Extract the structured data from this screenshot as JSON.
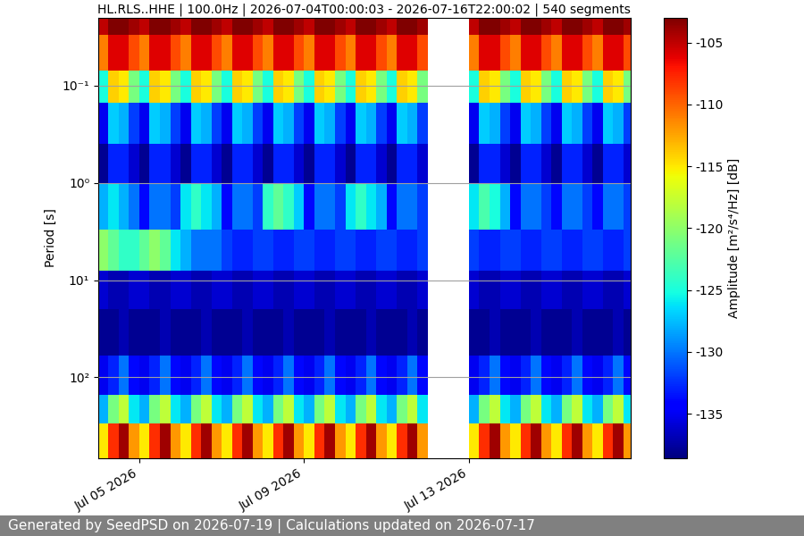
{
  "chart_data": {
    "type": "spectrogram",
    "title": "HL.RLS..HHE | 100.0Hz | 2026-07-04T00:00:03 - 2026-07-16T22:00:02 | 540 segments",
    "y_label": "Period [s]",
    "footer": "Generated by SeedPSD on 2026-07-19 | Calculations updated on 2026-07-17",
    "log": "y",
    "grid": true,
    "xlim": [
      "2026-07-04T00:00:03",
      "2026-07-16T22:00:02"
    ],
    "xticks": [
      {
        "value": "2026-07-05T00:00:00",
        "label": "Jul 05 2026"
      },
      {
        "value": "2026-07-09T00:00:00",
        "label": "Jul 09 2026"
      },
      {
        "value": "2026-07-13T00:00:00",
        "label": "Jul 13 2026"
      }
    ],
    "ylim": [
      680,
      0.02
    ],
    "yticks": [
      {
        "value": 0.1,
        "label": "10⁻¹"
      },
      {
        "value": 1,
        "label": "10⁰"
      },
      {
        "value": 10,
        "label": "10¹"
      },
      {
        "value": 100,
        "label": "10²"
      }
    ],
    "x_edges": [
      "2026-07-04T00:00:03",
      "2026-07-04T06:00:00",
      "2026-07-04T12:00:00",
      "2026-07-04T18:00:00",
      "2026-07-05T00:00:00",
      "2026-07-05T06:00:00",
      "2026-07-05T12:00:00",
      "2026-07-05T18:00:00",
      "2026-07-06T00:00:00",
      "2026-07-06T06:00:00",
      "2026-07-06T12:00:00",
      "2026-07-06T18:00:00",
      "2026-07-07T00:00:00",
      "2026-07-07T06:00:00",
      "2026-07-07T12:00:00",
      "2026-07-07T18:00:00",
      "2026-07-08T00:00:00",
      "2026-07-08T06:00:00",
      "2026-07-08T12:00:00",
      "2026-07-08T18:00:00",
      "2026-07-09T00:00:00",
      "2026-07-09T06:00:00",
      "2026-07-09T12:00:00",
      "2026-07-09T18:00:00",
      "2026-07-10T00:00:00",
      "2026-07-10T06:00:00",
      "2026-07-10T12:00:00",
      "2026-07-10T18:00:00",
      "2026-07-11T00:00:00",
      "2026-07-11T06:00:00",
      "2026-07-11T12:00:00",
      "2026-07-11T18:00:00",
      "2026-07-12T00:00:00",
      "2026-07-12T06:00:00",
      "2026-07-12T12:00:00",
      "2026-07-12T18:00:00",
      "2026-07-13T00:00:00",
      "2026-07-13T06:00:00",
      "2026-07-13T12:00:00",
      "2026-07-13T18:00:00",
      "2026-07-14T00:00:00",
      "2026-07-14T06:00:00",
      "2026-07-14T12:00:00",
      "2026-07-14T18:00:00",
      "2026-07-15T00:00:00",
      "2026-07-15T06:00:00",
      "2026-07-15T12:00:00",
      "2026-07-15T18:00:00",
      "2026-07-16T00:00:00",
      "2026-07-16T06:00:00",
      "2026-07-16T12:00:00",
      "2026-07-16T18:00:00",
      "2026-07-16T22:00:02"
    ],
    "period_edges": [
      0.02,
      0.03,
      0.07,
      0.15,
      0.4,
      1,
      3,
      8,
      20,
      60,
      150,
      300,
      680
    ],
    "cells": [
      [
        -105,
        -103,
        -103,
        -104,
        -105,
        -103,
        -103,
        -104,
        -105,
        -103,
        -103,
        -104,
        -105,
        -103,
        -103,
        -104,
        -105,
        -103,
        -103,
        -104,
        -105,
        -103,
        -103,
        -104,
        -105,
        -103,
        -103,
        -104,
        -105,
        -103,
        -103,
        -104,
        null,
        null,
        null,
        null,
        -105,
        -103,
        -103,
        -104,
        -105,
        -103,
        -103,
        -104,
        -105,
        -103,
        -103,
        -104,
        -105,
        -103,
        -103,
        -104
      ],
      [
        -111,
        -106,
        -106,
        -109,
        -111,
        -106,
        -106,
        -109,
        -111,
        -106,
        -106,
        -109,
        -111,
        -106,
        -106,
        -109,
        -111,
        -106,
        -106,
        -109,
        -111,
        -106,
        -106,
        -109,
        -111,
        -106,
        -106,
        -109,
        -111,
        -106,
        -106,
        -109,
        null,
        null,
        null,
        null,
        -111,
        -106,
        -106,
        -109,
        -111,
        -106,
        -106,
        -109,
        -111,
        -106,
        -106,
        -109,
        -111,
        -106,
        -106,
        -109
      ],
      [
        -125,
        -114,
        -115,
        -121,
        -125,
        -114,
        -115,
        -121,
        -125,
        -114,
        -115,
        -121,
        -125,
        -114,
        -115,
        -121,
        -125,
        -114,
        -115,
        -121,
        -125,
        -114,
        -115,
        -121,
        -125,
        -114,
        -115,
        -121,
        -125,
        -114,
        -115,
        -121,
        null,
        null,
        null,
        null,
        -125,
        -114,
        -115,
        -121,
        -125,
        -114,
        -115,
        -121,
        -125,
        -114,
        -115,
        -121,
        -125,
        -114,
        -115,
        -121
      ],
      [
        -135,
        -127,
        -128,
        -132,
        -135,
        -127,
        -128,
        -132,
        -135,
        -127,
        -128,
        -132,
        -135,
        -127,
        -128,
        -132,
        -135,
        -127,
        -128,
        -132,
        -135,
        -127,
        -128,
        -132,
        -135,
        -127,
        -128,
        -132,
        -135,
        -127,
        -128,
        -132,
        null,
        null,
        null,
        null,
        -135,
        -127,
        -128,
        -132,
        -135,
        -127,
        -128,
        -132,
        -135,
        -127,
        -128,
        -132,
        -135,
        -127,
        -128,
        -132
      ],
      [
        -138,
        -133,
        -133,
        -136,
        -138,
        -133,
        -133,
        -136,
        -138,
        -133,
        -133,
        -136,
        -138,
        -133,
        -133,
        -136,
        -138,
        -133,
        -133,
        -136,
        -138,
        -133,
        -133,
        -136,
        -138,
        -133,
        -133,
        -136,
        -138,
        -133,
        -133,
        -136,
        null,
        null,
        null,
        null,
        -138,
        -133,
        -133,
        -136,
        -138,
        -133,
        -133,
        -136,
        -138,
        -133,
        -133,
        -136,
        -138,
        -133,
        -133,
        -136
      ],
      [
        -128,
        -126,
        -128,
        -130,
        -134,
        -130,
        -130,
        -132,
        -126,
        -124,
        -126,
        -128,
        -134,
        -130,
        -130,
        -132,
        -124,
        -122,
        -124,
        -127,
        -134,
        -130,
        -130,
        -132,
        -126,
        -124,
        -126,
        -128,
        -134,
        -130,
        -130,
        -132,
        null,
        null,
        null,
        null,
        -126,
        -123,
        -125,
        -128,
        -134,
        -130,
        -130,
        -132,
        -134,
        -130,
        -130,
        -132,
        -134,
        -130,
        -130,
        -132
      ],
      [
        -120,
        -122,
        -124,
        -124,
        -122,
        -120,
        -122,
        -126,
        -128,
        -130,
        -130,
        -130,
        -132,
        -133,
        -133,
        -132,
        -132,
        -133,
        -133,
        -132,
        -132,
        -133,
        -133,
        -132,
        -132,
        -133,
        -133,
        -132,
        -132,
        -133,
        -133,
        -132,
        null,
        null,
        null,
        null,
        -132,
        -133,
        -133,
        -132,
        -132,
        -133,
        -133,
        -132,
        -132,
        -133,
        -133,
        -132,
        -132,
        -133,
        -133,
        -132
      ],
      [
        -136,
        -137,
        -137,
        -136,
        -136,
        -137,
        -137,
        -136,
        -136,
        -137,
        -137,
        -136,
        -136,
        -137,
        -137,
        -136,
        -136,
        -137,
        -137,
        -136,
        -136,
        -137,
        -137,
        -136,
        -136,
        -137,
        -137,
        -136,
        -136,
        -137,
        -137,
        -136,
        null,
        null,
        null,
        null,
        -136,
        -137,
        -137,
        -136,
        -136,
        -137,
        -137,
        -136,
        -136,
        -137,
        -137,
        -136,
        -136,
        -137,
        -137,
        -136
      ],
      [
        -138,
        -138,
        -137,
        -138,
        -138,
        -138,
        -137,
        -138,
        -138,
        -138,
        -137,
        -138,
        -138,
        -138,
        -137,
        -138,
        -138,
        -138,
        -137,
        -138,
        -138,
        -138,
        -137,
        -138,
        -138,
        -138,
        -137,
        -138,
        -138,
        -138,
        -137,
        -138,
        null,
        null,
        null,
        null,
        -138,
        -138,
        -137,
        -138,
        -138,
        -138,
        -137,
        -138,
        -138,
        -138,
        -137,
        -138,
        -138,
        -138,
        -137,
        -138
      ],
      [
        -135,
        -133,
        -130,
        -134,
        -135,
        -133,
        -130,
        -134,
        -135,
        -133,
        -130,
        -134,
        -135,
        -133,
        -130,
        -134,
        -135,
        -133,
        -130,
        -134,
        -135,
        -133,
        -130,
        -134,
        -135,
        -133,
        -130,
        -134,
        -135,
        -133,
        -130,
        -134,
        null,
        null,
        null,
        null,
        -135,
        -133,
        -130,
        -134,
        -135,
        -133,
        -130,
        -134,
        -135,
        -133,
        -130,
        -134,
        -135,
        -133,
        -130,
        -134
      ],
      [
        -128,
        -121,
        -118,
        -126,
        -128,
        -121,
        -118,
        -126,
        -128,
        -121,
        -118,
        -126,
        -128,
        -121,
        -118,
        -126,
        -128,
        -121,
        -118,
        -126,
        -128,
        -121,
        -118,
        -126,
        -128,
        -121,
        -118,
        -126,
        -128,
        -121,
        -118,
        -126,
        null,
        null,
        null,
        null,
        -128,
        -121,
        -118,
        -126,
        -128,
        -121,
        -118,
        -126,
        -128,
        -121,
        -118,
        -126,
        -128,
        -121,
        -118,
        -126
      ],
      [
        -115,
        -108,
        -104,
        -112,
        -115,
        -108,
        -104,
        -112,
        -115,
        -108,
        -104,
        -112,
        -115,
        -108,
        -104,
        -112,
        -115,
        -108,
        -104,
        -112,
        -115,
        -108,
        -104,
        -112,
        -115,
        -108,
        -104,
        -112,
        -115,
        -108,
        -104,
        -112,
        null,
        null,
        null,
        null,
        -115,
        -108,
        -104,
        -112,
        -115,
        -108,
        -104,
        -112,
        -115,
        -108,
        -104,
        -112,
        -115,
        -108,
        -104,
        -112
      ]
    ],
    "colorbar": {
      "label": "Amplitude [m²/s⁴/Hz] [dB]",
      "lim": [
        -138.6,
        -103
      ],
      "ticks": [
        -135,
        -130,
        -125,
        -120,
        -115,
        -110,
        -105
      ]
    }
  }
}
